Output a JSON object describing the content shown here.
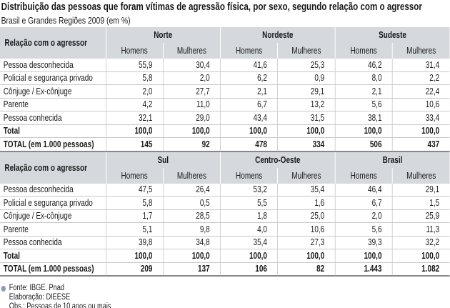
{
  "header": {
    "title": "Distribuição das pessoas que foram vítimas de agressão física, por sexo, segundo relação com o agressor",
    "subtitle": "Brasil e Grandes Regiões 2009 (em %)"
  },
  "blocks": [
    {
      "row_header": "Relação com o agressor",
      "regions": [
        "Norte",
        "Nordeste",
        "Sudeste"
      ],
      "sex_labels": [
        "Homens",
        "Mulheres",
        "Homens",
        "Mulheres",
        "Homens",
        "Mulheres"
      ],
      "rows": [
        {
          "label": "Pessoa desconhecida",
          "values": [
            "55,9",
            "30,4",
            "41,6",
            "25,3",
            "46,2",
            "31,4"
          ]
        },
        {
          "label": "Policial e segurança privado",
          "values": [
            "5,8",
            "2,0",
            "6,2",
            "0,9",
            "8,0",
            "2,2"
          ]
        },
        {
          "label": "Cônjuge / Ex-cônjuge",
          "values": [
            "2,0",
            "27,7",
            "2,1",
            "29,1",
            "2,1",
            "22,4"
          ]
        },
        {
          "label": "Parente",
          "values": [
            "4,2",
            "11,0",
            "6,7",
            "13,2",
            "5,6",
            "10,6"
          ]
        },
        {
          "label": "Pessoa conhecida",
          "values": [
            "32,1",
            "29,0",
            "43,4",
            "31,5",
            "38,1",
            "33,4"
          ]
        },
        {
          "label": "Total",
          "values": [
            "100,0",
            "100,0",
            "100,0",
            "100,0",
            "100,0",
            "100,0"
          ]
        },
        {
          "label": "TOTAL (em 1.000 pessoas)",
          "values": [
            "145",
            "92",
            "478",
            "334",
            "506",
            "437"
          ]
        }
      ]
    },
    {
      "row_header": "Relação com o agressor",
      "regions": [
        "Sul",
        "Centro-Oeste",
        "Brasil"
      ],
      "sex_labels": [
        "Homens",
        "Mulheres",
        "Homens",
        "Mulheres",
        "Homens",
        "Mulheres"
      ],
      "rows": [
        {
          "label": "Pessoa desconhecida",
          "values": [
            "47,5",
            "26,4",
            "53,2",
            "35,4",
            "46,4",
            "29,1"
          ]
        },
        {
          "label": "Policial e segurança privado",
          "values": [
            "5,8",
            "0,5",
            "5,5",
            "1,6",
            "6,7",
            "1,5"
          ]
        },
        {
          "label": "Cônjuge / Ex-cônjuge",
          "values": [
            "1,7",
            "28,5",
            "1,8",
            "25,0",
            "2,0",
            "25,9"
          ]
        },
        {
          "label": "Parente",
          "values": [
            "5,1",
            "9,8",
            "4,0",
            "10,6",
            "5,6",
            "11,3"
          ]
        },
        {
          "label": "Pessoa conhecida",
          "values": [
            "39,8",
            "34,8",
            "35,4",
            "27,3",
            "39,3",
            "32,2"
          ]
        },
        {
          "label": "Total",
          "values": [
            "100,0",
            "100,0",
            "100,0",
            "100,0",
            "100,0",
            "100,0"
          ]
        },
        {
          "label": "TOTAL (em 1.000 pessoas)",
          "values": [
            "209",
            "137",
            "106",
            "82",
            "1.443",
            "1.082"
          ]
        }
      ]
    }
  ],
  "footer": {
    "source": "Fonte: IBGE. Pnad",
    "elaboration": "Elaboração: DIEESE",
    "note": "Obs.: Pessoas de 10 anos ou mais"
  }
}
